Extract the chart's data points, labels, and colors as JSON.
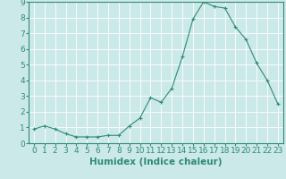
{
  "x": [
    0,
    1,
    2,
    3,
    4,
    5,
    6,
    7,
    8,
    9,
    10,
    11,
    12,
    13,
    14,
    15,
    16,
    17,
    18,
    19,
    20,
    21,
    22,
    23
  ],
  "y": [
    0.9,
    1.1,
    0.9,
    0.6,
    0.4,
    0.4,
    0.4,
    0.5,
    0.5,
    1.1,
    1.6,
    2.9,
    2.6,
    3.5,
    5.5,
    7.9,
    9.0,
    8.7,
    8.6,
    7.4,
    6.6,
    5.1,
    4.0,
    2.5
  ],
  "line_color": "#2e8b74",
  "marker": "+",
  "marker_size": 3,
  "marker_linewidth": 0.8,
  "line_width": 0.8,
  "background_color": "#cce9e9",
  "grid_color": "#ffffff",
  "xlabel": "Humidex (Indice chaleur)",
  "ylim": [
    0,
    9
  ],
  "xlim": [
    -0.5,
    23.5
  ],
  "yticks": [
    0,
    1,
    2,
    3,
    4,
    5,
    6,
    7,
    8,
    9
  ],
  "xticks": [
    0,
    1,
    2,
    3,
    4,
    5,
    6,
    7,
    8,
    9,
    10,
    11,
    12,
    13,
    14,
    15,
    16,
    17,
    18,
    19,
    20,
    21,
    22,
    23
  ],
  "xlabel_fontsize": 7.5,
  "tick_fontsize": 6.5,
  "spine_color": "#2e8b74"
}
